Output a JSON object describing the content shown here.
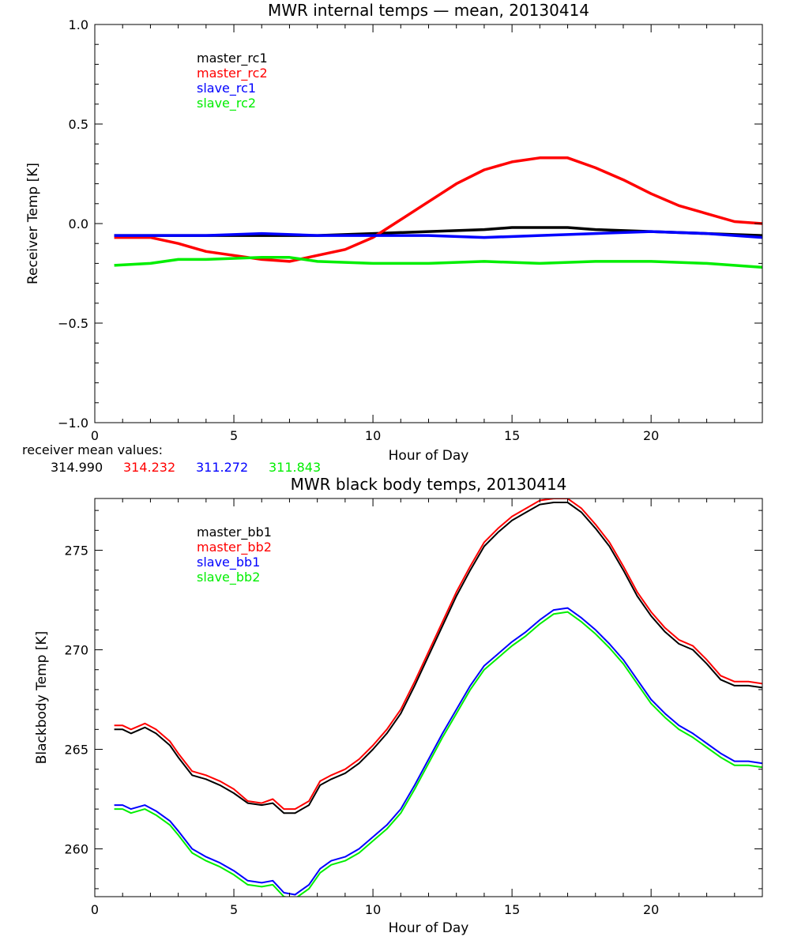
{
  "chart_data": [
    {
      "type": "line",
      "title": "MWR internal temps — mean, 20130414",
      "xlabel": "Hour of Day",
      "ylabel": "Receiver Temp [K]",
      "xlim": [
        0,
        24
      ],
      "ylim": [
        -1.0,
        1.0
      ],
      "xticks": [
        0,
        5,
        10,
        15,
        20
      ],
      "yticks": [
        -1.0,
        -0.5,
        0.0,
        0.5,
        1.0
      ],
      "ytick_labels": [
        "−1.0",
        "−0.5",
        "0.0",
        "0.5",
        "1.0"
      ],
      "grid": false,
      "legend_position": "top-left",
      "series": [
        {
          "name": "master_rc1",
          "color": "#000000",
          "x": [
            0.7,
            2,
            4,
            6,
            8,
            10,
            12,
            14,
            15,
            16,
            17,
            18,
            20,
            22,
            24
          ],
          "y": [
            -0.06,
            -0.06,
            -0.06,
            -0.06,
            -0.06,
            -0.05,
            -0.04,
            -0.03,
            -0.02,
            -0.02,
            -0.02,
            -0.03,
            -0.04,
            -0.05,
            -0.06
          ]
        },
        {
          "name": "master_rc2",
          "color": "#ff0000",
          "x": [
            0.7,
            2,
            3,
            4,
            5,
            6,
            7,
            8,
            9,
            10,
            11,
            12,
            13,
            14,
            15,
            16,
            17,
            18,
            19,
            20,
            21,
            22,
            23,
            24
          ],
          "y": [
            -0.07,
            -0.07,
            -0.1,
            -0.14,
            -0.16,
            -0.18,
            -0.19,
            -0.16,
            -0.13,
            -0.07,
            0.02,
            0.11,
            0.2,
            0.27,
            0.31,
            0.33,
            0.33,
            0.28,
            0.22,
            0.15,
            0.09,
            0.05,
            0.01,
            0.0
          ]
        },
        {
          "name": "slave_rc1",
          "color": "#0000ff",
          "x": [
            0.7,
            2,
            4,
            6,
            8,
            10,
            12,
            14,
            16,
            18,
            20,
            22,
            24
          ],
          "y": [
            -0.06,
            -0.06,
            -0.06,
            -0.05,
            -0.06,
            -0.06,
            -0.06,
            -0.07,
            -0.06,
            -0.05,
            -0.04,
            -0.05,
            -0.07
          ]
        },
        {
          "name": "slave_rc2",
          "color": "#00ee00",
          "x": [
            0.7,
            2,
            3,
            4,
            6,
            7,
            8,
            10,
            12,
            14,
            16,
            18,
            20,
            22,
            24
          ],
          "y": [
            -0.21,
            -0.2,
            -0.18,
            -0.18,
            -0.17,
            -0.17,
            -0.19,
            -0.2,
            -0.2,
            -0.19,
            -0.2,
            -0.19,
            -0.19,
            -0.2,
            -0.22
          ]
        }
      ]
    },
    {
      "type": "line",
      "title": "MWR black body temps, 20130414",
      "xlabel": "Hour of Day",
      "ylabel": "Blackbody Temp [K]",
      "xlim": [
        0,
        24
      ],
      "ylim": [
        257.6,
        277.6
      ],
      "xticks": [
        0,
        5,
        10,
        15,
        20
      ],
      "yticks": [
        260,
        265,
        270,
        275
      ],
      "grid": false,
      "legend_position": "top-left",
      "series": [
        {
          "name": "master_bb1",
          "color": "#000000",
          "x": [
            0.7,
            1.0,
            1.3,
            1.8,
            2.2,
            2.7,
            3.0,
            3.5,
            4.0,
            4.5,
            5.0,
            5.5,
            6.0,
            6.4,
            6.8,
            7.2,
            7.7,
            8.1,
            8.5,
            9.0,
            9.5,
            10.0,
            10.5,
            11.0,
            11.5,
            12.0,
            12.5,
            13.0,
            13.5,
            14.0,
            14.5,
            15.0,
            15.5,
            16.0,
            16.5,
            17.0,
            17.5,
            18.0,
            18.5,
            19.0,
            19.5,
            20.0,
            20.5,
            21.0,
            21.5,
            22.0,
            22.5,
            23.0,
            23.5,
            24.0
          ],
          "y": [
            266.0,
            266.0,
            265.8,
            266.1,
            265.8,
            265.2,
            264.6,
            263.7,
            263.5,
            263.2,
            262.8,
            262.3,
            262.2,
            262.3,
            261.8,
            261.8,
            262.2,
            263.2,
            263.5,
            263.8,
            264.3,
            265.0,
            265.8,
            266.8,
            268.2,
            269.7,
            271.2,
            272.7,
            274.0,
            275.2,
            275.9,
            276.5,
            276.9,
            277.3,
            277.4,
            277.4,
            276.9,
            276.1,
            275.2,
            274.0,
            272.7,
            271.7,
            270.9,
            270.3,
            270.0,
            269.3,
            268.5,
            268.2,
            268.2,
            268.1
          ]
        },
        {
          "name": "master_bb2",
          "color": "#ff0000",
          "x": [
            0.7,
            1.0,
            1.3,
            1.8,
            2.2,
            2.7,
            3.0,
            3.5,
            4.0,
            4.5,
            5.0,
            5.5,
            6.0,
            6.4,
            6.8,
            7.2,
            7.7,
            8.1,
            8.5,
            9.0,
            9.5,
            10.0,
            10.5,
            11.0,
            11.5,
            12.0,
            12.5,
            13.0,
            13.5,
            14.0,
            14.5,
            15.0,
            15.5,
            16.0,
            16.5,
            17.0,
            17.5,
            18.0,
            18.5,
            19.0,
            19.5,
            20.0,
            20.5,
            21.0,
            21.5,
            22.0,
            22.5,
            23.0,
            23.5,
            24.0
          ],
          "y": [
            266.2,
            266.2,
            266.0,
            266.3,
            266.0,
            265.4,
            264.8,
            263.9,
            263.7,
            263.4,
            263.0,
            262.4,
            262.3,
            262.5,
            262.0,
            262.0,
            262.4,
            263.4,
            263.7,
            264.0,
            264.5,
            265.2,
            266.0,
            267.0,
            268.4,
            269.9,
            271.4,
            272.9,
            274.2,
            275.4,
            276.1,
            276.7,
            277.1,
            277.5,
            277.6,
            277.6,
            277.1,
            276.3,
            275.4,
            274.2,
            272.9,
            271.9,
            271.1,
            270.5,
            270.2,
            269.5,
            268.7,
            268.4,
            268.4,
            268.3
          ]
        },
        {
          "name": "slave_bb1",
          "color": "#0000ff",
          "x": [
            0.7,
            1.0,
            1.3,
            1.8,
            2.2,
            2.7,
            3.0,
            3.5,
            4.0,
            4.5,
            5.0,
            5.5,
            6.0,
            6.4,
            6.8,
            7.2,
            7.7,
            8.1,
            8.5,
            9.0,
            9.5,
            10.0,
            10.5,
            11.0,
            11.5,
            12.0,
            12.5,
            13.0,
            13.5,
            14.0,
            14.5,
            15.0,
            15.5,
            16.0,
            16.5,
            17.0,
            17.5,
            18.0,
            18.5,
            19.0,
            19.5,
            20.0,
            20.5,
            21.0,
            21.5,
            22.0,
            22.5,
            23.0,
            23.5,
            24.0
          ],
          "y": [
            262.2,
            262.2,
            262.0,
            262.2,
            261.9,
            261.4,
            260.9,
            260.0,
            259.6,
            259.3,
            258.9,
            258.4,
            258.3,
            258.4,
            257.8,
            257.7,
            258.2,
            259.0,
            259.4,
            259.6,
            260.0,
            260.6,
            261.2,
            262.0,
            263.2,
            264.5,
            265.8,
            267.0,
            268.2,
            269.2,
            269.8,
            270.4,
            270.9,
            271.5,
            272.0,
            272.1,
            271.6,
            271.0,
            270.3,
            269.5,
            268.5,
            267.5,
            266.8,
            266.2,
            265.8,
            265.3,
            264.8,
            264.4,
            264.4,
            264.3
          ]
        },
        {
          "name": "slave_bb2",
          "color": "#00ee00",
          "x": [
            0.7,
            1.0,
            1.3,
            1.8,
            2.2,
            2.7,
            3.0,
            3.5,
            4.0,
            4.5,
            5.0,
            5.5,
            6.0,
            6.4,
            6.8,
            7.2,
            7.7,
            8.1,
            8.5,
            9.0,
            9.5,
            10.0,
            10.5,
            11.0,
            11.5,
            12.0,
            12.5,
            13.0,
            13.5,
            14.0,
            14.5,
            15.0,
            15.5,
            16.0,
            16.5,
            17.0,
            17.5,
            18.0,
            18.5,
            19.0,
            19.5,
            20.0,
            20.5,
            21.0,
            21.5,
            22.0,
            22.5,
            23.0,
            23.5,
            24.0
          ],
          "y": [
            262.0,
            262.0,
            261.8,
            262.0,
            261.7,
            261.2,
            260.7,
            259.8,
            259.4,
            259.1,
            258.7,
            258.2,
            258.1,
            258.2,
            257.6,
            257.5,
            258.0,
            258.8,
            259.2,
            259.4,
            259.8,
            260.4,
            261.0,
            261.8,
            263.0,
            264.3,
            265.6,
            266.8,
            268.0,
            269.0,
            269.6,
            270.2,
            270.7,
            271.3,
            271.8,
            271.9,
            271.4,
            270.8,
            270.1,
            269.3,
            268.3,
            267.3,
            266.6,
            266.0,
            265.6,
            265.1,
            264.6,
            264.2,
            264.2,
            264.1
          ]
        }
      ]
    }
  ],
  "receiver_means": {
    "label": "receiver mean values:",
    "values": [
      {
        "text": "314.990",
        "color": "#000000"
      },
      {
        "text": "314.232",
        "color": "#ff0000"
      },
      {
        "text": "311.272",
        "color": "#0000ff"
      },
      {
        "text": "311.843",
        "color": "#00ee00"
      }
    ]
  }
}
